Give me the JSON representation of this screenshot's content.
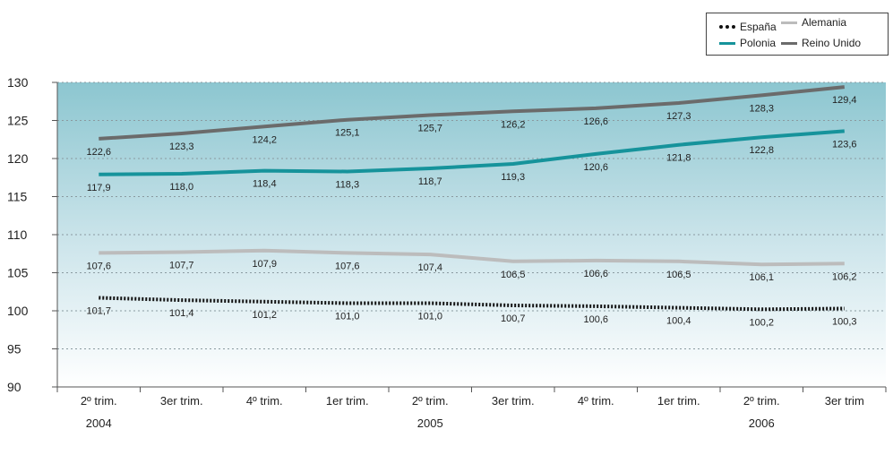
{
  "chart_data": {
    "type": "line",
    "categories": [
      "2º trim.",
      "3er trim.",
      "4º trim.",
      "1er trim.",
      "2º trim.",
      "3er trim.",
      "4º trim.",
      "1er trim.",
      "2º trim.",
      "3er trim"
    ],
    "year_labels": [
      {
        "label": "2004",
        "at_category": 0
      },
      {
        "label": "2005",
        "at_category": 4
      },
      {
        "label": "2006",
        "at_category": 8
      }
    ],
    "ylim": [
      90,
      130
    ],
    "yticks": [
      90,
      95,
      100,
      105,
      110,
      115,
      120,
      125,
      130
    ],
    "grid": true,
    "legend_position": "top-right",
    "series": [
      {
        "name": "España",
        "color": "#111111",
        "style": "dotted",
        "values": [
          101.7,
          101.4,
          101.2,
          101.0,
          101.0,
          100.7,
          100.6,
          100.4,
          100.2,
          100.3
        ],
        "labels": [
          "101,7",
          "101,4",
          "101,2",
          "101,0",
          "101,0",
          "100,7",
          "100,6",
          "100,4",
          "100,2",
          "100,3"
        ]
      },
      {
        "name": "Alemania",
        "color": "#bcbcbc",
        "style": "solid",
        "values": [
          107.6,
          107.7,
          107.9,
          107.6,
          107.4,
          106.5,
          106.6,
          106.5,
          106.1,
          106.2
        ],
        "labels": [
          "107,6",
          "107,7",
          "107,9",
          "107,6",
          "107,4",
          "106,5",
          "106,6",
          "106,5",
          "106,1",
          "106,2"
        ]
      },
      {
        "name": "Polonia",
        "color": "#16939b",
        "style": "solid",
        "values": [
          117.9,
          118.0,
          118.4,
          118.3,
          118.7,
          119.3,
          120.6,
          121.8,
          122.8,
          123.6
        ],
        "labels": [
          "117,9",
          "118,0",
          "118,4",
          "118,3",
          "118,7",
          "119,3",
          "120,6",
          "121,8",
          "122,8",
          "123,6"
        ]
      },
      {
        "name": "Reino Unido",
        "color": "#6b6b6b",
        "style": "solid",
        "values": [
          122.6,
          123.3,
          124.2,
          125.1,
          125.7,
          126.2,
          126.6,
          127.3,
          128.3,
          129.4
        ],
        "labels": [
          "122,6",
          "123,3",
          "124,2",
          "125,1",
          "125,7",
          "126,2",
          "126,6",
          "127,3",
          "128,3",
          "129,4"
        ]
      }
    ]
  }
}
